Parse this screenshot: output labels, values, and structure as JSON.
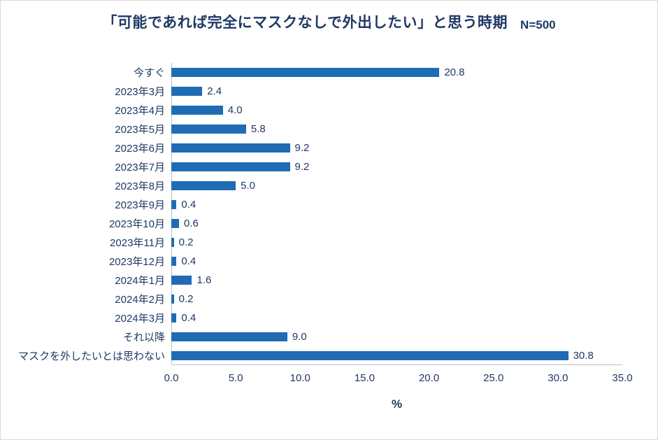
{
  "chart_data": {
    "type": "bar",
    "orientation": "horizontal",
    "title": "「可能であれば完全にマスクなしで外出したい」と思う時期",
    "n_label": "N=500",
    "xlabel": "%",
    "categories": [
      "今すぐ",
      "2023年3月",
      "2023年4月",
      "2023年5月",
      "2023年6月",
      "2023年7月",
      "2023年8月",
      "2023年9月",
      "2023年10月",
      "2023年11月",
      "2023年12月",
      "2024年1月",
      "2024年2月",
      "2024年3月",
      "それ以降",
      "マスクを外したいとは思わない"
    ],
    "values": [
      20.8,
      2.4,
      4.0,
      5.8,
      9.2,
      9.2,
      5.0,
      0.4,
      0.6,
      0.2,
      0.4,
      1.6,
      0.2,
      0.4,
      9.0,
      30.8
    ],
    "value_labels": [
      "20.8",
      "2.4",
      "4.0",
      "5.8",
      "9.2",
      "9.2",
      "5.0",
      "0.4",
      "0.6",
      "0.2",
      "0.4",
      "1.6",
      "0.2",
      "0.4",
      "9.0",
      "30.8"
    ],
    "xlim": [
      0,
      35
    ],
    "xticks": [
      0,
      5,
      10,
      15,
      20,
      25,
      30,
      35
    ],
    "xtick_labels": [
      "0.0",
      "5.0",
      "10.0",
      "15.0",
      "20.0",
      "25.0",
      "30.0",
      "35.0"
    ],
    "grid": false,
    "legend": "none",
    "colors": {
      "bar": "#1F6CB4",
      "text": "#1F3864",
      "axis_line": "#bfbfbf"
    }
  }
}
